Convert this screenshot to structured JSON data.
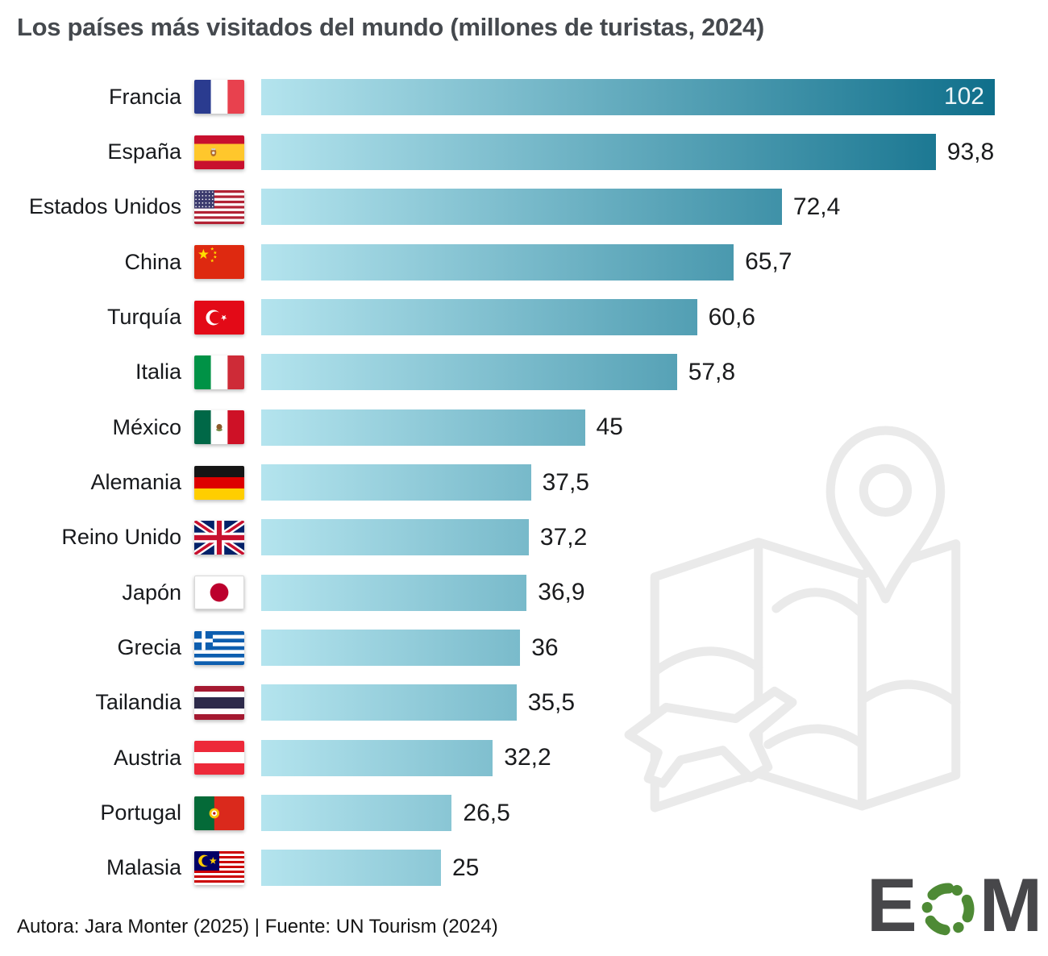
{
  "title": "Los países más visitados del mundo (millones de turistas, 2024)",
  "footer": "Autora: Jara Monter (2025) | Fuente: UN Tourism (2024)",
  "logo": {
    "e": "E",
    "m": "M"
  },
  "colors": {
    "bar_gradient_start": "#b4e4ee",
    "bar_gradient_end": "#0f6f8b",
    "title_text": "#45494e",
    "body_text": "#17191c",
    "value_inside_text": "#eef6f8",
    "watermark": "#eaeaea",
    "logo_gray": "#47474a",
    "logo_green": "#4e8a35"
  },
  "chart_data": {
    "type": "bar",
    "orientation": "horizontal",
    "title": "Los países más visitados del mundo (millones de turistas, 2024)",
    "unit": "millones de turistas",
    "year": "2024",
    "xlim": [
      0,
      102
    ],
    "grid": false,
    "legend": false,
    "categories": [
      "Francia",
      "España",
      "Estados Unidos",
      "China",
      "Turquía",
      "Italia",
      "México",
      "Alemania",
      "Reino Unido",
      "Japón",
      "Grecia",
      "Tailandia",
      "Austria",
      "Portugal",
      "Malasia"
    ],
    "values": [
      102,
      93.8,
      72.4,
      65.7,
      60.6,
      57.8,
      45,
      37.5,
      37.2,
      36.9,
      36,
      35.5,
      32.2,
      26.5,
      25
    ],
    "value_labels": [
      "102",
      "93,8",
      "72,4",
      "65,7",
      "60,6",
      "57,8",
      "45",
      "37,5",
      "37,2",
      "36,9",
      "36",
      "35,5",
      "32,2",
      "26,5",
      "25"
    ],
    "flags": [
      "fr",
      "es",
      "us",
      "cn",
      "tr",
      "it",
      "mx",
      "de",
      "gb",
      "jp",
      "gr",
      "th",
      "at",
      "pt",
      "my"
    ],
    "value_label_inside": [
      true,
      false,
      false,
      false,
      false,
      false,
      false,
      false,
      false,
      false,
      false,
      false,
      false,
      false,
      false
    ]
  }
}
